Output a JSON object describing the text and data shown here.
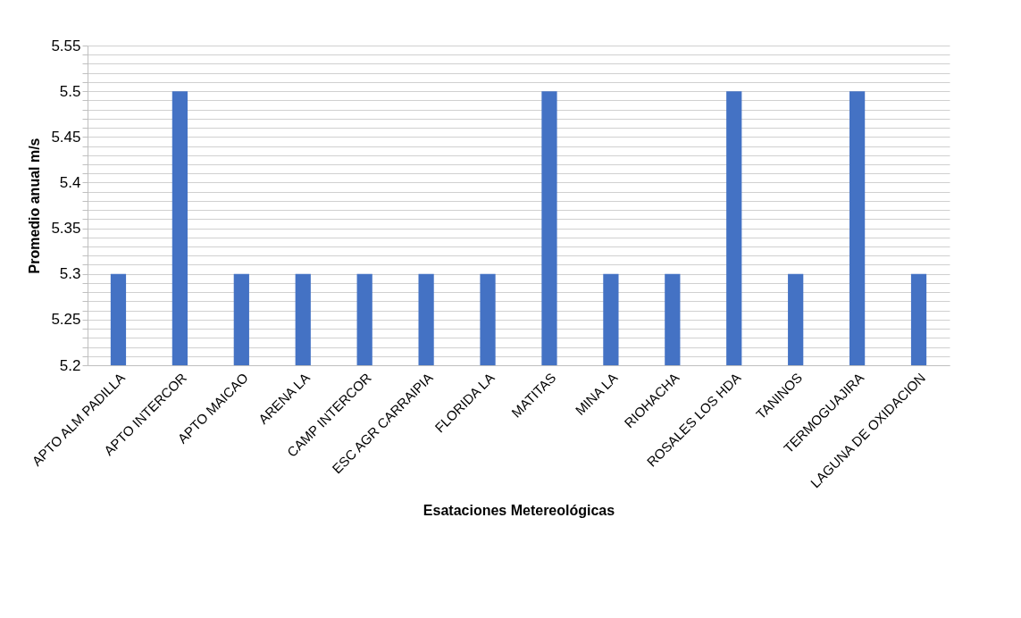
{
  "chart_data": {
    "type": "bar",
    "xlabel": "Esataciones Metereológicas",
    "ylabel": "Promedio anual m/s",
    "categories": [
      "APTO ALM PADILLA",
      "APTO INTERCOR",
      "APTO MAICAO",
      "ARENA LA",
      "CAMP INTERCOR",
      "ESC AGR CARRAIPIA",
      "FLORIDA LA",
      "MATITAS",
      "MINA LA",
      "RIOHACHA",
      "ROSALES LOS HDA",
      "TANINOS",
      "TERMOGUAJIRA",
      "LAGUNA DE OXIDACION"
    ],
    "values": [
      5.3,
      5.5,
      5.3,
      5.3,
      5.3,
      5.3,
      5.3,
      5.5,
      5.3,
      5.3,
      5.5,
      5.3,
      5.5,
      5.3
    ],
    "color": "#4472c4",
    "ylim": [
      5.2,
      5.55
    ],
    "yticks": [
      5.2,
      {
        "value": 5.21,
        "label": null
      },
      {
        "value": 5.22,
        "label": null
      },
      {
        "value": 5.23,
        "label": null
      },
      {
        "value": 5.24,
        "label": null
      },
      5.25,
      {
        "value": 5.26,
        "label": null
      },
      {
        "value": 5.27,
        "label": null
      },
      {
        "value": 5.28,
        "label": null
      },
      {
        "value": 5.29,
        "label": null
      },
      5.3,
      {
        "value": 5.31,
        "label": null
      },
      {
        "value": 5.32,
        "label": null
      },
      {
        "value": 5.33,
        "label": null
      },
      {
        "value": 5.34,
        "label": null
      },
      5.35,
      {
        "value": 5.36,
        "label": null
      },
      {
        "value": 5.37,
        "label": null
      },
      {
        "value": 5.38,
        "label": null
      },
      {
        "value": 5.39,
        "label": null
      },
      5.4,
      {
        "value": 5.41,
        "label": null
      },
      {
        "value": 5.42,
        "label": null
      },
      {
        "value": 5.43,
        "label": null
      },
      {
        "value": 5.44,
        "label": null
      },
      5.45,
      {
        "value": 5.46,
        "label": null
      },
      {
        "value": 5.47,
        "label": null
      },
      {
        "value": 5.48,
        "label": null
      },
      {
        "value": 5.49,
        "label": null
      },
      5.5,
      {
        "value": 5.51,
        "label": null
      },
      {
        "value": 5.52,
        "label": null
      },
      {
        "value": 5.53,
        "label": null
      },
      {
        "value": 5.54,
        "label": null
      },
      5.55
    ],
    "grid": true
  }
}
